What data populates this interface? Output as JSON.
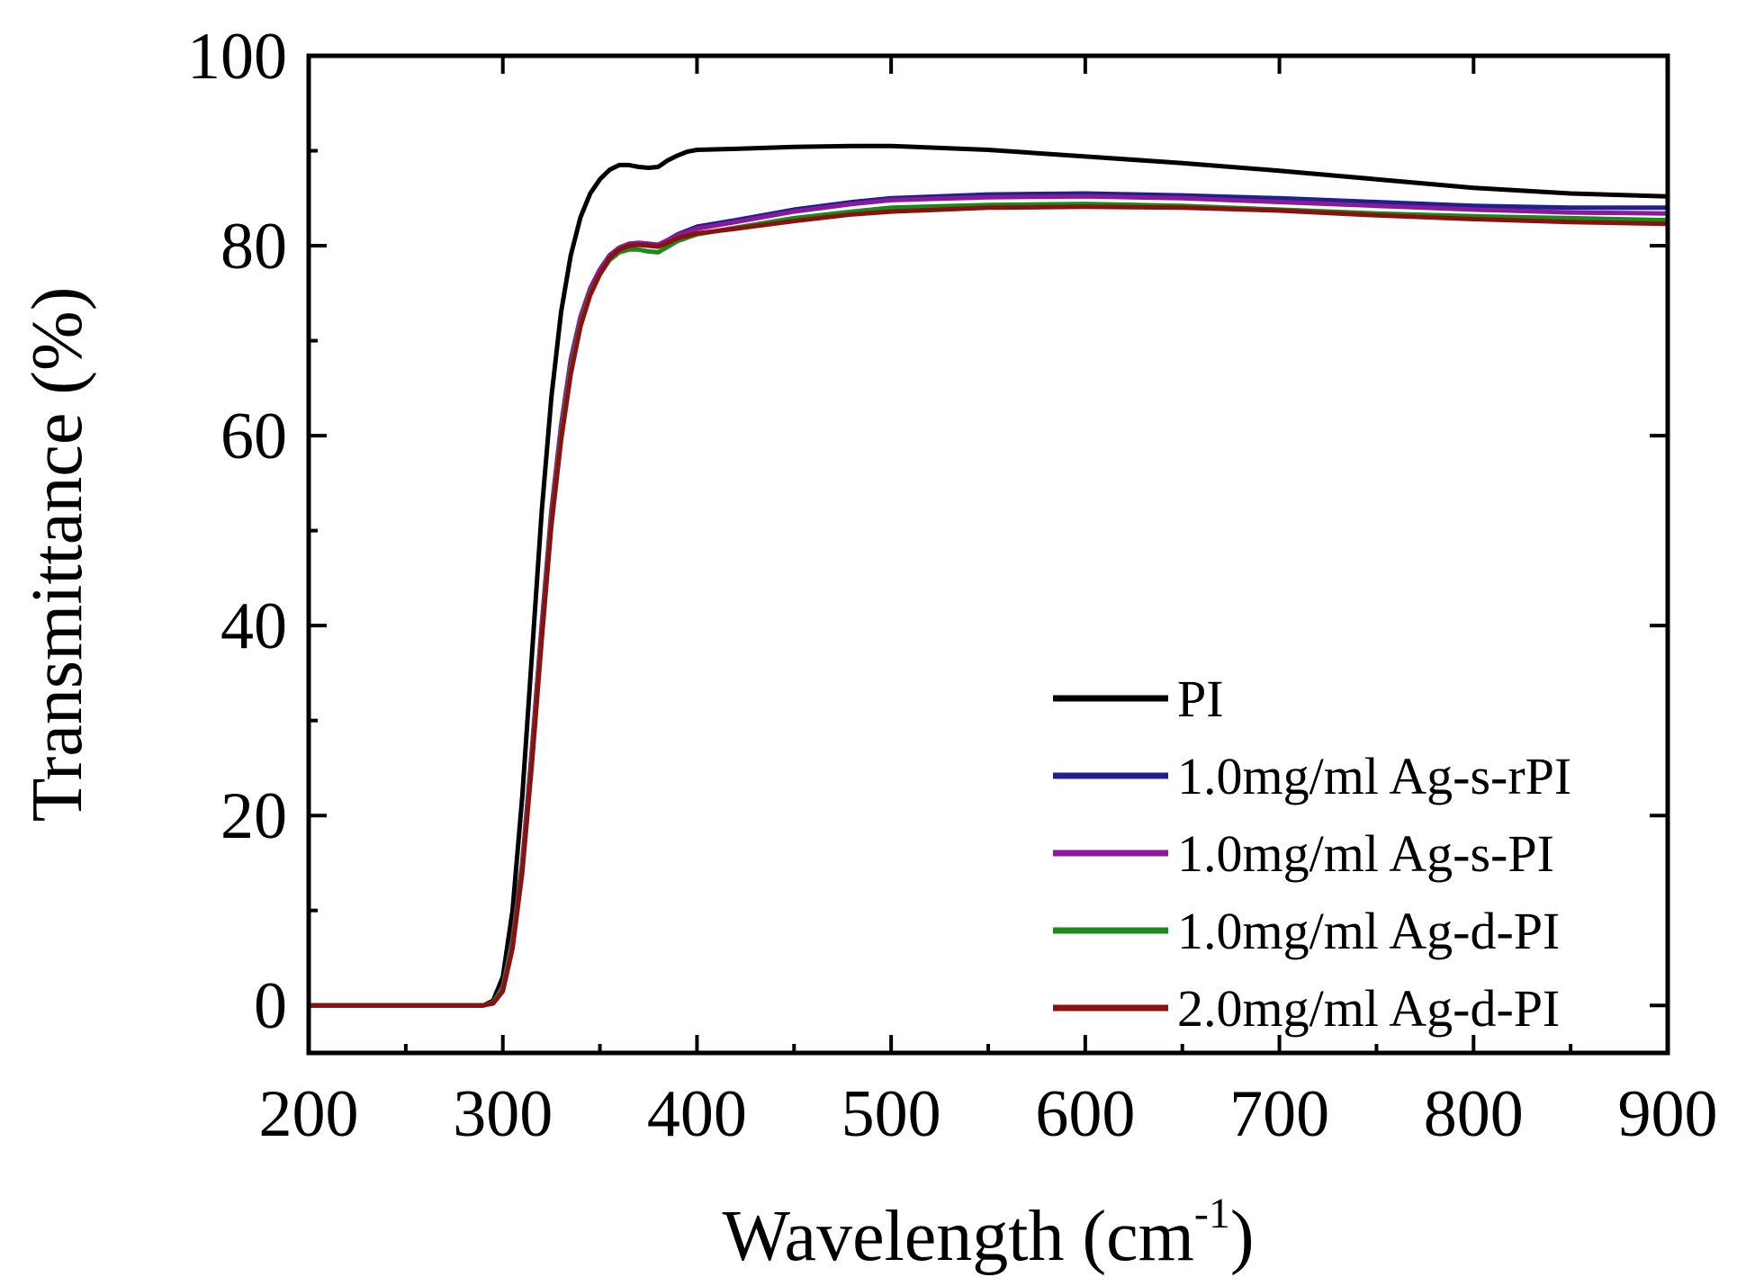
{
  "chart_data": {
    "type": "line",
    "title": "",
    "xlabel": "Wavelength (cm",
    "xlabel_superscript": "-1",
    "xlabel_suffix": ")",
    "ylabel": "Transmittance (%)",
    "xlim": [
      200,
      900
    ],
    "ylim": [
      -5,
      100
    ],
    "xticks": [
      200,
      300,
      400,
      500,
      600,
      700,
      800,
      900
    ],
    "yticks": [
      0,
      20,
      40,
      60,
      80,
      100
    ],
    "grid": false,
    "legend_position": "bottom-right",
    "series": [
      {
        "name": "PI",
        "color": "#000000",
        "x": [
          200,
          250,
          290,
          295,
          300,
          305,
          310,
          315,
          320,
          325,
          330,
          335,
          340,
          345,
          350,
          355,
          360,
          365,
          370,
          375,
          380,
          385,
          390,
          395,
          400,
          420,
          450,
          480,
          500,
          550,
          600,
          650,
          700,
          750,
          800,
          850,
          900
        ],
        "y": [
          0,
          0,
          0,
          0.5,
          3,
          10,
          22,
          37,
          52,
          64,
          73,
          79,
          83,
          85.5,
          87,
          88,
          88.5,
          88.5,
          88.3,
          88.2,
          88.3,
          89,
          89.5,
          89.9,
          90.1,
          90.2,
          90.4,
          90.5,
          90.5,
          90.1,
          89.4,
          88.7,
          87.9,
          87.0,
          86.1,
          85.5,
          85.2
        ]
      },
      {
        "name": "1.0mg/ml Ag-s-rPI",
        "color": "#1f1f8f",
        "x": [
          200,
          250,
          290,
          295,
          300,
          305,
          310,
          315,
          320,
          325,
          330,
          335,
          340,
          345,
          350,
          355,
          360,
          365,
          370,
          375,
          380,
          385,
          390,
          400,
          420,
          450,
          480,
          500,
          550,
          600,
          650,
          700,
          750,
          800,
          850,
          900
        ],
        "y": [
          0,
          0,
          0,
          0.3,
          2,
          7,
          15,
          27,
          40,
          52,
          61,
          68,
          72.5,
          75.5,
          77.5,
          79,
          79.8,
          80.2,
          80.3,
          80.2,
          80.1,
          80.6,
          81.2,
          82.0,
          82.7,
          83.8,
          84.6,
          85.0,
          85.4,
          85.5,
          85.3,
          85.0,
          84.6,
          84.2,
          84.0,
          84.0
        ]
      },
      {
        "name": "1.0mg/ml Ag-s-PI",
        "color": "#8b1a9b",
        "x": [
          200,
          250,
          290,
          295,
          300,
          305,
          310,
          315,
          320,
          325,
          330,
          335,
          340,
          345,
          350,
          355,
          360,
          365,
          370,
          375,
          380,
          385,
          390,
          400,
          420,
          450,
          480,
          500,
          550,
          600,
          650,
          700,
          750,
          800,
          850,
          900
        ],
        "y": [
          0,
          0,
          0,
          0.3,
          2,
          7,
          15,
          27,
          40,
          52,
          61,
          68,
          72.5,
          75.5,
          77.5,
          79,
          79.8,
          80.2,
          80.3,
          80.2,
          80.1,
          80.6,
          81.1,
          81.8,
          82.5,
          83.6,
          84.4,
          84.8,
          85.1,
          85.2,
          85.0,
          84.6,
          84.2,
          83.8,
          83.5,
          83.4
        ]
      },
      {
        "name": "1.0mg/ml Ag-d-PI",
        "color": "#1a8a1a",
        "x": [
          200,
          250,
          290,
          295,
          300,
          305,
          310,
          315,
          320,
          325,
          330,
          335,
          340,
          345,
          350,
          355,
          360,
          365,
          370,
          375,
          380,
          385,
          390,
          400,
          420,
          450,
          480,
          500,
          550,
          600,
          650,
          700,
          750,
          800,
          850,
          900
        ],
        "y": [
          0,
          0,
          0,
          0.3,
          1.8,
          6.5,
          14.5,
          26,
          39,
          51,
          60,
          67,
          71.8,
          75,
          77,
          78.5,
          79.3,
          79.6,
          79.6,
          79.4,
          79.3,
          79.9,
          80.5,
          81.2,
          81.9,
          82.9,
          83.6,
          84.0,
          84.3,
          84.4,
          84.2,
          83.8,
          83.4,
          83.1,
          82.9,
          82.7
        ]
      },
      {
        "name": "2.0mg/ml Ag-d-PI",
        "color": "#8b1010",
        "x": [
          200,
          250,
          290,
          295,
          300,
          305,
          310,
          315,
          320,
          325,
          330,
          335,
          340,
          345,
          350,
          355,
          360,
          365,
          370,
          375,
          380,
          385,
          390,
          400,
          420,
          450,
          480,
          500,
          550,
          600,
          650,
          700,
          750,
          800,
          850,
          900
        ],
        "y": [
          0,
          0,
          0,
          0.2,
          1.5,
          6,
          14,
          25.5,
          38.5,
          50.5,
          59.5,
          66.5,
          71.5,
          74.8,
          77,
          78.7,
          79.6,
          80.0,
          80.1,
          80.0,
          79.9,
          80.3,
          80.8,
          81.3,
          81.8,
          82.6,
          83.3,
          83.6,
          84.0,
          84.1,
          84.0,
          83.7,
          83.2,
          82.8,
          82.5,
          82.3
        ]
      }
    ]
  }
}
